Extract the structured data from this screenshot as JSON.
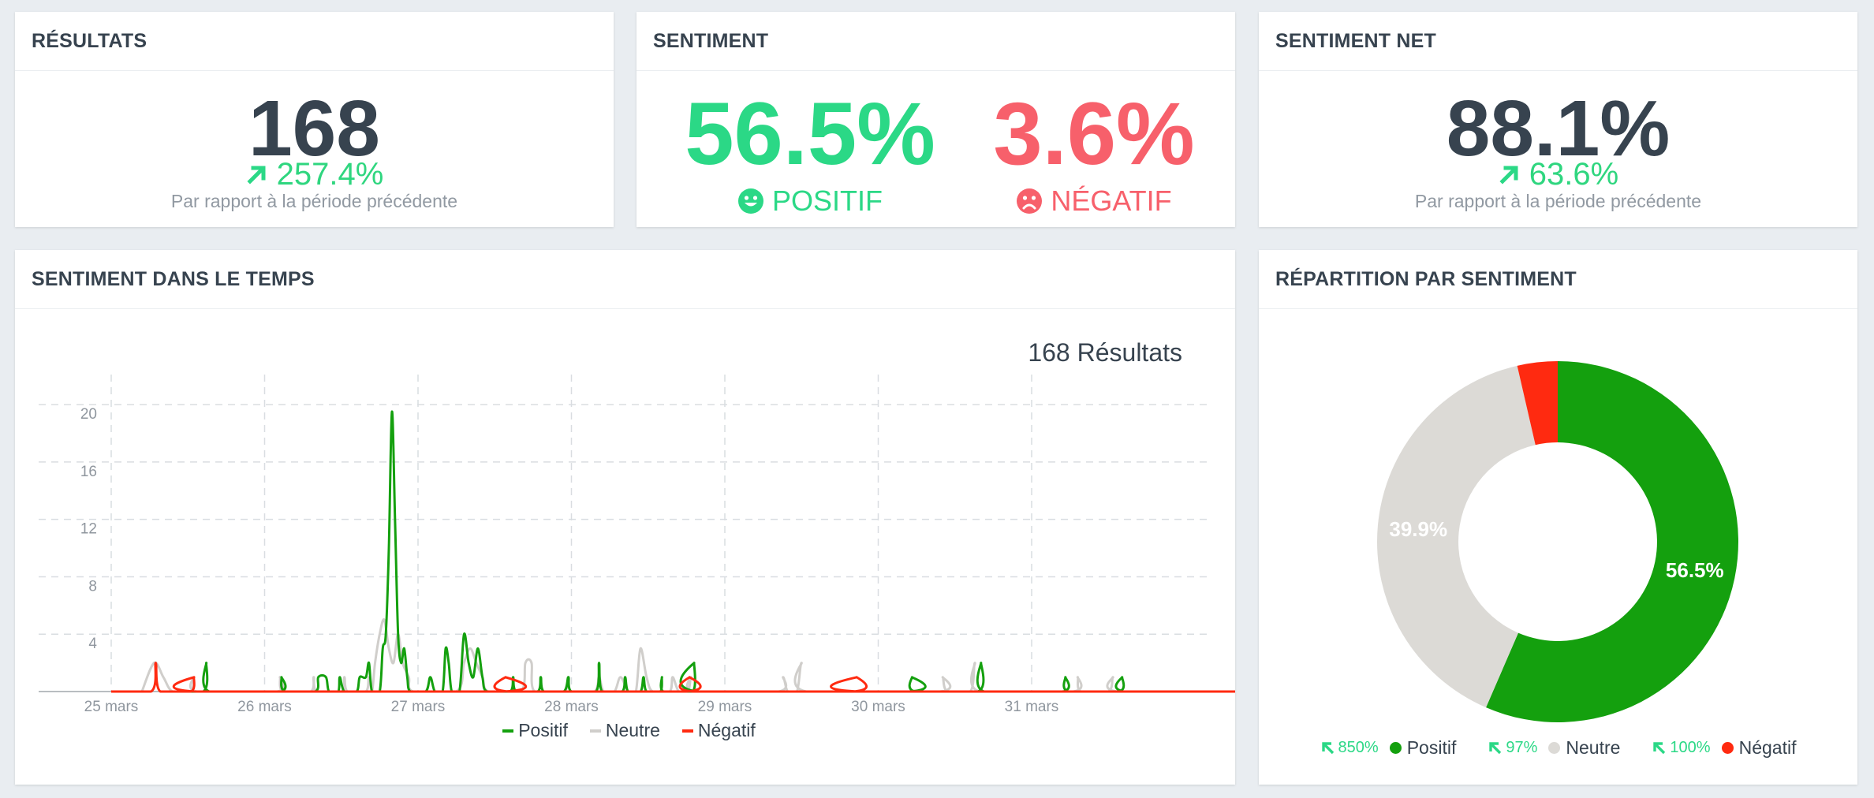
{
  "colors": {
    "positive": "#14a00e",
    "neutral": "#dcdad6",
    "negative": "#ff2a10",
    "kpi_up": "#2bd886",
    "kpi_neg": "#f7606b"
  },
  "results": {
    "title": "RÉSULTATS",
    "value": "168",
    "change": "257.4%",
    "change_icon": "arrow-up-right-icon",
    "note": "Par rapport à la période précédente"
  },
  "sentiment": {
    "title": "SENTIMENT",
    "positive_value": "56.5%",
    "positive_label": "POSITIF",
    "positive_icon": "smile-icon",
    "negative_value": "3.6%",
    "negative_label": "NÉGATIF",
    "negative_icon": "frown-icon"
  },
  "net": {
    "title": "SENTIMENT NET",
    "value": "88.1%",
    "change": "63.6%",
    "change_icon": "arrow-up-right-icon",
    "note": "Par rapport à la période précédente"
  },
  "timeline": {
    "title": "SENTIMENT DANS LE TEMPS",
    "results_label": "168 Résultats"
  },
  "breakdown": {
    "title": "RÉPARTITION PAR SENTIMENT",
    "legend": [
      {
        "change": "850%",
        "label": "Positif"
      },
      {
        "change": "97%",
        "label": "Neutre"
      },
      {
        "change": "100%",
        "label": "Négatif"
      }
    ]
  },
  "chart_data": [
    {
      "type": "line",
      "x_tick_labels": [
        "25 mars",
        "26 mars",
        "27 mars",
        "28 mars",
        "29 mars",
        "30 mars",
        "31 mars"
      ],
      "x_range_days": [
        25,
        32.3
      ],
      "ylim": [
        0,
        21
      ],
      "y_ticks": [
        4,
        8,
        12,
        16,
        20
      ],
      "grid": true,
      "legend_position": "bottom",
      "series": [
        {
          "name": "Positif",
          "color": "#14a00e",
          "points": [
            [
              25.33,
              0
            ],
            [
              25.6,
              0
            ],
            [
              25.62,
              2
            ],
            [
              25.64,
              0
            ],
            [
              26.1,
              0
            ],
            [
              26.11,
              1
            ],
            [
              26.13,
              0
            ],
            [
              26.33,
              0
            ],
            [
              26.35,
              1
            ],
            [
              26.4,
              1
            ],
            [
              26.42,
              0
            ],
            [
              26.48,
              0
            ],
            [
              26.49,
              1
            ],
            [
              26.52,
              0
            ],
            [
              26.6,
              0
            ],
            [
              26.62,
              1
            ],
            [
              26.66,
              1
            ],
            [
              26.68,
              2
            ],
            [
              26.7,
              0
            ],
            [
              26.75,
              0
            ],
            [
              26.77,
              3
            ],
            [
              26.79,
              4
            ],
            [
              26.81,
              10
            ],
            [
              26.83,
              19.5
            ],
            [
              26.85,
              12
            ],
            [
              26.87,
              4
            ],
            [
              26.89,
              2
            ],
            [
              26.91,
              3
            ],
            [
              26.93,
              1
            ],
            [
              26.95,
              0
            ],
            [
              27.05,
              0
            ],
            [
              27.08,
              1
            ],
            [
              27.11,
              0
            ],
            [
              27.16,
              0
            ],
            [
              27.18,
              3
            ],
            [
              27.2,
              2
            ],
            [
              27.22,
              0
            ],
            [
              27.27,
              0
            ],
            [
              27.3,
              4
            ],
            [
              27.33,
              2
            ],
            [
              27.36,
              1
            ],
            [
              27.39,
              3
            ],
            [
              27.42,
              1
            ],
            [
              27.45,
              0
            ],
            [
              27.6,
              0
            ],
            [
              27.62,
              1
            ],
            [
              27.64,
              0
            ],
            [
              27.78,
              0
            ],
            [
              27.8,
              1
            ],
            [
              27.82,
              0
            ],
            [
              27.95,
              0
            ],
            [
              27.98,
              1
            ],
            [
              28.0,
              0
            ],
            [
              28.16,
              0
            ],
            [
              28.18,
              2
            ],
            [
              28.2,
              0
            ],
            [
              28.33,
              0
            ],
            [
              28.35,
              1
            ],
            [
              28.37,
              0
            ],
            [
              28.45,
              0
            ],
            [
              28.47,
              1
            ],
            [
              28.49,
              0
            ],
            [
              28.58,
              0
            ],
            [
              28.59,
              1
            ],
            [
              28.6,
              0
            ],
            [
              28.79,
              0
            ],
            [
              28.8,
              2
            ],
            [
              28.82,
              0
            ],
            [
              30.2,
              0
            ],
            [
              30.22,
              1
            ],
            [
              30.24,
              0
            ],
            [
              30.65,
              0
            ],
            [
              30.67,
              2
            ],
            [
              30.69,
              0
            ],
            [
              31.2,
              0
            ],
            [
              31.22,
              1
            ],
            [
              31.24,
              0
            ],
            [
              31.57,
              0
            ],
            [
              31.59,
              1
            ],
            [
              31.61,
              0
            ],
            [
              32.35,
              0
            ]
          ]
        },
        {
          "name": "Neutre",
          "color": "#d0cecb",
          "points": [
            [
              25.2,
              0
            ],
            [
              25.28,
              2
            ],
            [
              25.34,
              1
            ],
            [
              25.4,
              0
            ],
            [
              25.52,
              0
            ],
            [
              25.54,
              1
            ],
            [
              25.56,
              0
            ],
            [
              26.08,
              0
            ],
            [
              26.1,
              1
            ],
            [
              26.12,
              0
            ],
            [
              26.3,
              0
            ],
            [
              26.32,
              1
            ],
            [
              26.34,
              0
            ],
            [
              26.5,
              0
            ],
            [
              26.52,
              1
            ],
            [
              26.54,
              0
            ],
            [
              26.66,
              0
            ],
            [
              26.68,
              1
            ],
            [
              26.7,
              0
            ],
            [
              26.72,
              2
            ],
            [
              26.75,
              4
            ],
            [
              26.78,
              5
            ],
            [
              26.81,
              3
            ],
            [
              26.84,
              2
            ],
            [
              26.87,
              4
            ],
            [
              26.9,
              2
            ],
            [
              26.94,
              1
            ],
            [
              26.97,
              0
            ],
            [
              27.25,
              0
            ],
            [
              27.3,
              2
            ],
            [
              27.34,
              3
            ],
            [
              27.38,
              2
            ],
            [
              27.42,
              1
            ],
            [
              27.46,
              0
            ],
            [
              27.67,
              0
            ],
            [
              27.7,
              2
            ],
            [
              27.74,
              2
            ],
            [
              27.76,
              0
            ],
            [
              27.95,
              0
            ],
            [
              27.98,
              1
            ],
            [
              28.0,
              0
            ],
            [
              28.15,
              0
            ],
            [
              28.18,
              1
            ],
            [
              28.21,
              0
            ],
            [
              28.28,
              0
            ],
            [
              28.32,
              1
            ],
            [
              28.37,
              0
            ],
            [
              28.42,
              0
            ],
            [
              28.45,
              3
            ],
            [
              28.49,
              1
            ],
            [
              28.53,
              0
            ],
            [
              28.64,
              0
            ],
            [
              28.66,
              1
            ],
            [
              28.7,
              0
            ],
            [
              28.76,
              0
            ],
            [
              28.78,
              1
            ],
            [
              28.8,
              0
            ],
            [
              29.35,
              0
            ],
            [
              29.38,
              1
            ],
            [
              29.41,
              0
            ],
            [
              29.47,
              0
            ],
            [
              29.5,
              2
            ],
            [
              29.53,
              0
            ],
            [
              30.4,
              0
            ],
            [
              30.42,
              1
            ],
            [
              30.45,
              0
            ],
            [
              30.6,
              0
            ],
            [
              30.63,
              2
            ],
            [
              30.66,
              0
            ],
            [
              31.27,
              0
            ],
            [
              31.3,
              1
            ],
            [
              31.32,
              0
            ],
            [
              31.5,
              0
            ],
            [
              31.53,
              1
            ],
            [
              31.56,
              0
            ],
            [
              32.35,
              0
            ]
          ]
        },
        {
          "name": "Négatif",
          "color": "#ff2a10",
          "points": [
            [
              25.0,
              0
            ],
            [
              25.26,
              0
            ],
            [
              25.29,
              2
            ],
            [
              25.32,
              0
            ],
            [
              25.52,
              0
            ],
            [
              25.54,
              1
            ],
            [
              25.56,
              0
            ],
            [
              27.55,
              0
            ],
            [
              27.57,
              1
            ],
            [
              27.59,
              0
            ],
            [
              28.75,
              0
            ],
            [
              28.77,
              1
            ],
            [
              28.79,
              0
            ],
            [
              29.84,
              0
            ],
            [
              29.86,
              1
            ],
            [
              29.88,
              0
            ],
            [
              32.35,
              0
            ]
          ]
        }
      ]
    },
    {
      "type": "pie",
      "hole": 0.55,
      "slices": [
        {
          "label": "Positif",
          "value": 56.5,
          "color": "#14a00e",
          "text": "56.5%"
        },
        {
          "label": "Neutre",
          "value": 39.9,
          "color": "#dcdad6",
          "text": "39.9%"
        },
        {
          "label": "Négatif",
          "value": 3.6,
          "color": "#ff2a10",
          "text": ""
        }
      ]
    }
  ]
}
